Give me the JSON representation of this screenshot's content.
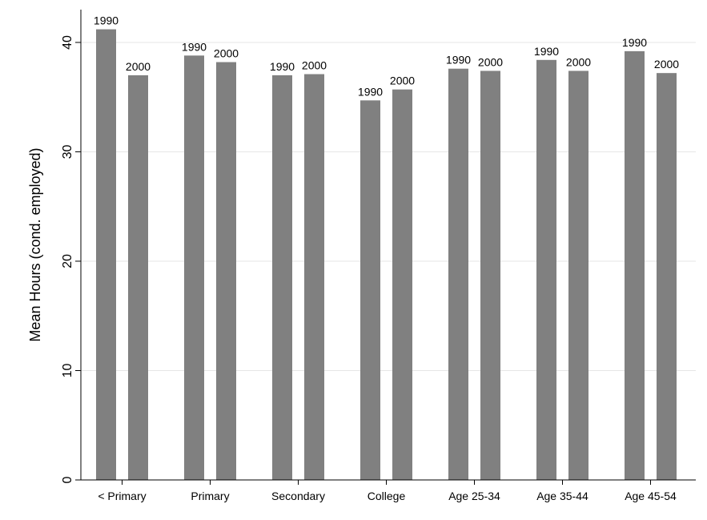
{
  "chart_data": {
    "type": "bar",
    "title": "",
    "xlabel": "",
    "ylabel": "Mean Hours (cond. employed)",
    "ylim": [
      0,
      43
    ],
    "yticks": [
      0,
      10,
      20,
      30,
      40
    ],
    "grid": true,
    "legend": "none",
    "categories": [
      "< Primary",
      "Primary",
      "Secondary",
      "College",
      "Age 25-34",
      "Age 35-44",
      "Age 45-54"
    ],
    "series": [
      {
        "label": "1990",
        "values": [
          41.2,
          38.8,
          37.0,
          34.7,
          37.6,
          38.4,
          39.2
        ]
      },
      {
        "label": "2000",
        "values": [
          37.0,
          38.2,
          37.1,
          35.7,
          37.4,
          37.4,
          37.2
        ]
      }
    ],
    "colors": {
      "bar": "#808080",
      "grid": "#e6e6e6"
    }
  }
}
